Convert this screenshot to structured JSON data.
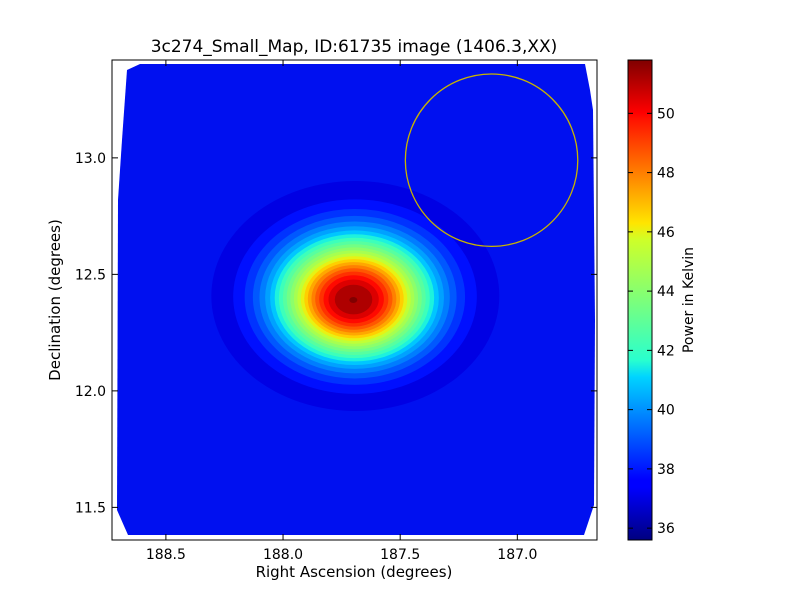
{
  "chart_data": {
    "type": "heatmap",
    "title": "3c274_Small_Map, ID:61735 image (1406.3,XX)",
    "xlabel": "Right Ascension (degrees)",
    "ylabel": "Declination (degrees)",
    "x_reversed": true,
    "xlim": [
      188.73,
      186.66
    ],
    "ylim": [
      11.36,
      13.42
    ],
    "xticks": [
      188.5,
      188.0,
      187.5,
      187.0
    ],
    "xtick_labels": [
      "188.5",
      "188.0",
      "187.5",
      "187.0"
    ],
    "yticks": [
      11.5,
      12.0,
      12.5,
      13.0
    ],
    "ytick_labels": [
      "11.5",
      "12.0",
      "12.5",
      "13.0"
    ],
    "colorbar": {
      "label": "Power in Kelvin",
      "colormap": "jet",
      "range": [
        35.6,
        51.8
      ],
      "ticks": [
        36,
        38,
        40,
        42,
        44,
        46,
        48,
        50
      ],
      "tick_labels": [
        "36",
        "38",
        "40",
        "42",
        "44",
        "46",
        "48",
        "50"
      ]
    },
    "peak": {
      "ra": 187.7,
      "dec": 12.39,
      "value": 51.8
    },
    "background_level": 36.5,
    "annotation_circle": {
      "ra": 187.11,
      "dec": 12.99,
      "radius_deg": 0.37,
      "color": "#c8b400"
    }
  }
}
